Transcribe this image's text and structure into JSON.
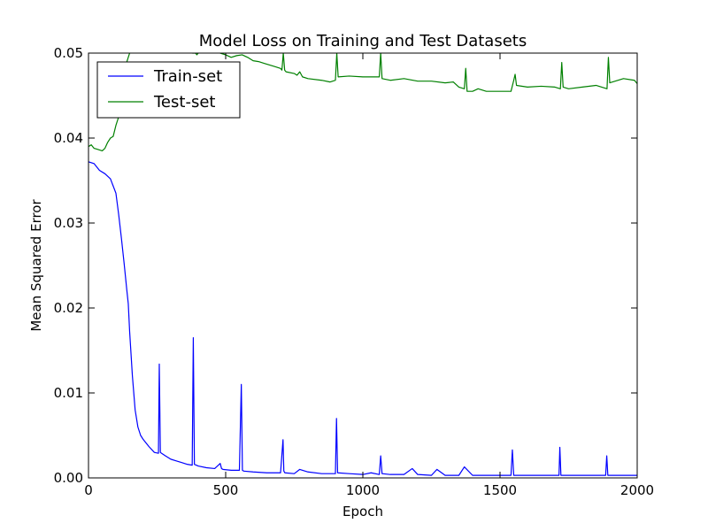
{
  "chart_data": {
    "type": "line",
    "title": "Model Loss on Training and Test Datasets",
    "xlabel": "Epoch",
    "ylabel": "Mean Squared Error",
    "xlim": [
      0,
      2000
    ],
    "ylim": [
      0.0,
      0.05
    ],
    "xticks": [
      0,
      500,
      1000,
      1500,
      2000
    ],
    "xtick_labels": [
      "0",
      "500",
      "1000",
      "1500",
      "2000"
    ],
    "yticks": [
      0.0,
      0.01,
      0.02,
      0.03,
      0.04,
      0.05
    ],
    "ytick_labels": [
      "0.00",
      "0.01",
      "0.02",
      "0.03",
      "0.04",
      "0.05"
    ],
    "grid": false,
    "legend_position": "top-left",
    "series": [
      {
        "name": "Train-set",
        "color": "#0000ff",
        "x": [
          0,
          20,
          40,
          60,
          80,
          100,
          110,
          120,
          130,
          140,
          145,
          150,
          160,
          170,
          180,
          190,
          200,
          220,
          240,
          255,
          258,
          262,
          266,
          280,
          300,
          320,
          340,
          360,
          378,
          382,
          386,
          400,
          430,
          460,
          480,
          485,
          490,
          520,
          550,
          557,
          561,
          566,
          600,
          650,
          700,
          709,
          712,
          716,
          750,
          770,
          800,
          850,
          900,
          904,
          908,
          950,
          1000,
          1030,
          1060,
          1065,
          1070,
          1100,
          1150,
          1180,
          1200,
          1250,
          1270,
          1300,
          1350,
          1370,
          1400,
          1450,
          1500,
          1540,
          1545,
          1550,
          1600,
          1650,
          1700,
          1715,
          1718,
          1722,
          1750,
          1800,
          1850,
          1885,
          1889,
          1893,
          1950,
          2000
        ],
        "y": [
          0.0372,
          0.037,
          0.0362,
          0.0358,
          0.0352,
          0.0335,
          0.031,
          0.0282,
          0.0252,
          0.022,
          0.0205,
          0.0172,
          0.012,
          0.008,
          0.006,
          0.005,
          0.0045,
          0.0037,
          0.003,
          0.0029,
          0.0134,
          0.003,
          0.0029,
          0.0026,
          0.0022,
          0.002,
          0.0018,
          0.0016,
          0.0015,
          0.0165,
          0.0016,
          0.0014,
          0.0012,
          0.0011,
          0.0017,
          0.0011,
          0.001,
          0.0009,
          0.0009,
          0.011,
          0.0009,
          0.0008,
          0.0007,
          0.0006,
          0.0006,
          0.0045,
          0.0008,
          0.0006,
          0.0005,
          0.001,
          0.0007,
          0.0005,
          0.0005,
          0.007,
          0.0006,
          0.0005,
          0.0004,
          0.0006,
          0.0004,
          0.0026,
          0.0005,
          0.0004,
          0.0004,
          0.0011,
          0.0004,
          0.0003,
          0.001,
          0.0003,
          0.0003,
          0.0013,
          0.0003,
          0.0003,
          0.0003,
          0.0003,
          0.0033,
          0.0003,
          0.0003,
          0.0003,
          0.0003,
          0.0003,
          0.0036,
          0.0003,
          0.0003,
          0.0003,
          0.0003,
          0.0003,
          0.0026,
          0.0003,
          0.0003,
          0.0003
        ]
      },
      {
        "name": "Test-set",
        "color": "#008000",
        "x": [
          0,
          10,
          20,
          30,
          40,
          50,
          60,
          70,
          80,
          90,
          100,
          110,
          120,
          130,
          140,
          150,
          160,
          170,
          180,
          200,
          220,
          240,
          260,
          280,
          300,
          320,
          340,
          360,
          380,
          390,
          395,
          400,
          420,
          440,
          460,
          480,
          500,
          520,
          540,
          560,
          580,
          600,
          620,
          640,
          660,
          680,
          700,
          705,
          710,
          715,
          720,
          750,
          760,
          770,
          780,
          800,
          850,
          880,
          900,
          905,
          910,
          950,
          1000,
          1050,
          1060,
          1065,
          1070,
          1100,
          1150,
          1200,
          1250,
          1300,
          1330,
          1350,
          1370,
          1375,
          1380,
          1400,
          1420,
          1450,
          1500,
          1540,
          1550,
          1555,
          1560,
          1600,
          1650,
          1700,
          1720,
          1725,
          1730,
          1750,
          1800,
          1850,
          1890,
          1895,
          1900,
          1950,
          1990,
          2000
        ],
        "y": [
          0.039,
          0.0392,
          0.0388,
          0.0387,
          0.0386,
          0.0385,
          0.0388,
          0.0395,
          0.04,
          0.0402,
          0.0415,
          0.0425,
          0.045,
          0.0475,
          0.049,
          0.05,
          0.0515,
          0.053,
          0.054,
          0.0548,
          0.052,
          0.051,
          0.0505,
          0.0503,
          0.0502,
          0.0502,
          0.0501,
          0.0501,
          0.05,
          0.05,
          0.0498,
          0.05,
          0.0505,
          0.051,
          0.0507,
          0.05,
          0.0498,
          0.0495,
          0.0497,
          0.0498,
          0.0495,
          0.0491,
          0.049,
          0.0488,
          0.0486,
          0.0484,
          0.0482,
          0.048,
          0.05,
          0.048,
          0.0478,
          0.0476,
          0.0474,
          0.0478,
          0.0472,
          0.047,
          0.0468,
          0.0466,
          0.0468,
          0.05,
          0.0472,
          0.0473,
          0.0472,
          0.0472,
          0.0472,
          0.05,
          0.047,
          0.0468,
          0.047,
          0.0467,
          0.0467,
          0.0465,
          0.0466,
          0.046,
          0.0458,
          0.0482,
          0.0455,
          0.0455,
          0.0458,
          0.0455,
          0.0455,
          0.0455,
          0.0468,
          0.0475,
          0.0462,
          0.046,
          0.0461,
          0.046,
          0.0458,
          0.0489,
          0.046,
          0.0458,
          0.046,
          0.0462,
          0.0458,
          0.0495,
          0.0465,
          0.047,
          0.0468,
          0.0464
        ]
      }
    ]
  }
}
